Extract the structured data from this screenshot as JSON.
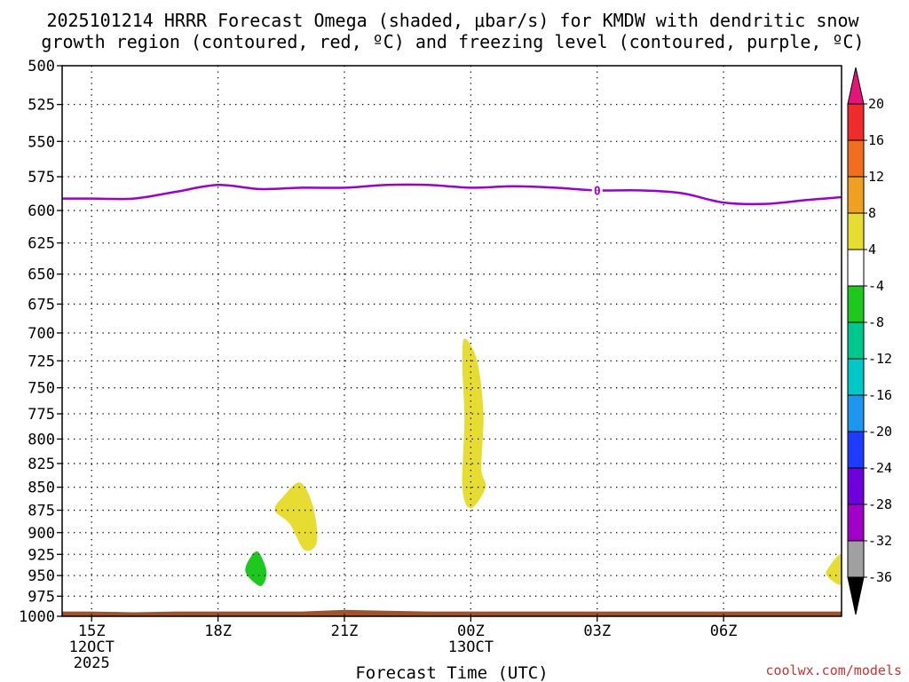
{
  "chart_data": {
    "type": "heatmap",
    "title_lines": [
      "2025101214 HRRR Forecast Omega (shaded, μbar/s) for KMDW with dendritic snow",
      "growth region (contoured, red, ºC) and freezing level (contoured, purple, ºC)"
    ],
    "xlabel": "Forecast Time (UTC)",
    "credit": "coolwx.com/models",
    "x_range_hours": [
      -0.7,
      17.8
    ],
    "x_ticks": [
      {
        "hour": 0,
        "lines": [
          "15Z",
          "12OCT",
          "2025"
        ]
      },
      {
        "hour": 3,
        "lines": [
          "18Z"
        ]
      },
      {
        "hour": 6,
        "lines": [
          "21Z"
        ]
      },
      {
        "hour": 9,
        "lines": [
          "00Z",
          "13OCT"
        ]
      },
      {
        "hour": 12,
        "lines": [
          "03Z"
        ]
      },
      {
        "hour": 15,
        "lines": [
          "06Z"
        ]
      }
    ],
    "y_ticks": [
      500,
      525,
      550,
      575,
      600,
      625,
      650,
      675,
      700,
      725,
      750,
      775,
      800,
      825,
      850,
      875,
      900,
      925,
      950,
      975,
      1000
    ],
    "ylim": [
      1000,
      500
    ],
    "y_scale": "log-pressure",
    "grid": true,
    "colorbar": {
      "bands": [
        {
          "from": 16,
          "to": 20,
          "color": "#ee2c2c"
        },
        {
          "from": 12,
          "to": 16,
          "color": "#f06e1e"
        },
        {
          "from": 8,
          "to": 12,
          "color": "#f0a021"
        },
        {
          "from": 4,
          "to": 8,
          "color": "#e6dc32"
        },
        {
          "from": -4,
          "to": 4,
          "color": "#ffffff"
        },
        {
          "from": -8,
          "to": -4,
          "color": "#1ec81e"
        },
        {
          "from": -12,
          "to": -8,
          "color": "#00c88c"
        },
        {
          "from": -16,
          "to": -12,
          "color": "#00c8c8"
        },
        {
          "from": -20,
          "to": -16,
          "color": "#1e96f0"
        },
        {
          "from": -24,
          "to": -20,
          "color": "#1e3cff"
        },
        {
          "from": -28,
          "to": -24,
          "color": "#6e00dc"
        },
        {
          "from": -32,
          "to": -28,
          "color": "#a000c8"
        },
        {
          "from": -36,
          "to": -32,
          "color": "#a0a0a0"
        }
      ],
      "top_arrow_color": "#e6147a",
      "bottom_arrow_color": "#000000",
      "tick_labels": [
        "20",
        "16",
        "12",
        "8",
        "4",
        "-4",
        "-8",
        "-12",
        "-16",
        "-20",
        "-24",
        "-28",
        "-32",
        "-36"
      ]
    },
    "freezing_level": {
      "color": "#9900cc",
      "label": "0",
      "label_point": {
        "hour": 12,
        "p": 585
      },
      "points": [
        {
          "hour": -0.7,
          "p": 591
        },
        {
          "hour": 0,
          "p": 591
        },
        {
          "hour": 1,
          "p": 591
        },
        {
          "hour": 2,
          "p": 586
        },
        {
          "hour": 3,
          "p": 581
        },
        {
          "hour": 4,
          "p": 584
        },
        {
          "hour": 5,
          "p": 583
        },
        {
          "hour": 6,
          "p": 583
        },
        {
          "hour": 7,
          "p": 581
        },
        {
          "hour": 8,
          "p": 581
        },
        {
          "hour": 9,
          "p": 583
        },
        {
          "hour": 10,
          "p": 582
        },
        {
          "hour": 11,
          "p": 583
        },
        {
          "hour": 12,
          "p": 585
        },
        {
          "hour": 13,
          "p": 585
        },
        {
          "hour": 14,
          "p": 587
        },
        {
          "hour": 15,
          "p": 594
        },
        {
          "hour": 16,
          "p": 595
        },
        {
          "hour": 17,
          "p": 592
        },
        {
          "hour": 17.8,
          "p": 590
        }
      ]
    },
    "shaded_regions": [
      {
        "range": "4 to 8",
        "color": "#e6dc32",
        "points": [
          {
            "hour": 8.85,
            "p": 705
          },
          {
            "hour": 9.15,
            "p": 725
          },
          {
            "hour": 9.3,
            "p": 775
          },
          {
            "hour": 9.25,
            "p": 830
          },
          {
            "hour": 9.35,
            "p": 850
          },
          {
            "hour": 9.0,
            "p": 873
          },
          {
            "hour": 8.8,
            "p": 850
          },
          {
            "hour": 8.85,
            "p": 780
          },
          {
            "hour": 8.8,
            "p": 730
          }
        ]
      },
      {
        "range": "4 to 8",
        "color": "#e6dc32",
        "points": [
          {
            "hour": 4.95,
            "p": 845
          },
          {
            "hour": 5.25,
            "p": 870
          },
          {
            "hour": 5.35,
            "p": 910
          },
          {
            "hour": 5.05,
            "p": 920
          },
          {
            "hour": 4.7,
            "p": 890
          },
          {
            "hour": 4.35,
            "p": 875
          },
          {
            "hour": 4.55,
            "p": 860
          }
        ]
      },
      {
        "range": "4 to 8",
        "color": "#e6dc32",
        "points": [
          {
            "hour": 17.8,
            "p": 925
          },
          {
            "hour": 17.8,
            "p": 960
          },
          {
            "hour": 17.45,
            "p": 950
          },
          {
            "hour": 17.5,
            "p": 940
          }
        ]
      },
      {
        "range": "-8 to -4",
        "color": "#1ec81e",
        "points": [
          {
            "hour": 3.95,
            "p": 922
          },
          {
            "hour": 4.15,
            "p": 945
          },
          {
            "hour": 4.05,
            "p": 962
          },
          {
            "hour": 3.85,
            "p": 958
          },
          {
            "hour": 3.65,
            "p": 945
          },
          {
            "hour": 3.75,
            "p": 930
          }
        ]
      }
    ],
    "terrain": {
      "color": "#a0522d",
      "points": [
        {
          "hour": -0.7,
          "p": 994
        },
        {
          "hour": 0,
          "p": 994
        },
        {
          "hour": 1,
          "p": 995
        },
        {
          "hour": 2,
          "p": 994
        },
        {
          "hour": 3,
          "p": 994
        },
        {
          "hour": 4,
          "p": 994
        },
        {
          "hour": 5,
          "p": 994
        },
        {
          "hour": 6,
          "p": 992
        },
        {
          "hour": 7,
          "p": 993
        },
        {
          "hour": 8,
          "p": 994
        },
        {
          "hour": 9,
          "p": 994
        },
        {
          "hour": 10,
          "p": 994
        },
        {
          "hour": 11,
          "p": 994
        },
        {
          "hour": 12,
          "p": 994
        },
        {
          "hour": 13,
          "p": 994
        },
        {
          "hour": 14,
          "p": 994
        },
        {
          "hour": 15,
          "p": 994
        },
        {
          "hour": 16,
          "p": 994
        },
        {
          "hour": 17,
          "p": 994
        },
        {
          "hour": 17.8,
          "p": 994
        }
      ]
    }
  }
}
